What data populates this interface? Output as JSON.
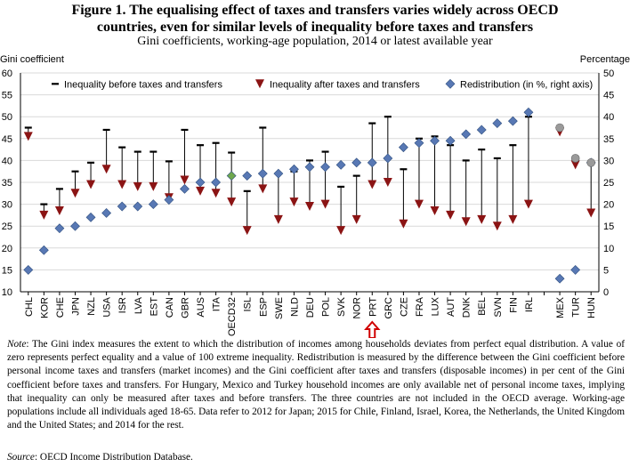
{
  "figure": {
    "title_line1": "Figure 1. The equalising effect of taxes and transfers varies widely across OECD",
    "title_line2": "countries, even for similar levels of inequality before taxes and transfers",
    "subtitle": "Gini coefficients, working-age population, 2014 or latest available year",
    "note_label": "Note",
    "note_text": ": The Gini index measures the extent to which the distribution of incomes among households deviates from perfect equal distribution. A value of zero represents perfect equality and a value of 100 extreme inequality. Redistribution is measured by the difference between the Gini coefficient before personal income taxes and transfers (market incomes) and the Gini coefficient after taxes and transfers (disposable incomes) in per cent of the Gini coefficient before taxes and transfers. For Hungary, Mexico and Turkey household incomes are only available net of personal income taxes, implying that inequality can only be measured after taxes and before transfers. The three countries are not included in the OECD average. Working-age populations include all individuals aged 18-65. Data refer to 2012 for Japan; 2015 for Chile, Finland, Israel, Korea, the Netherlands, the United Kingdom and the United States; and 2014 for the rest.",
    "source_label": "Source",
    "source_text": ": OECD Income Distribution Database."
  },
  "chart_data": {
    "type": "scatter",
    "ylabel_left": "Gini coefficient",
    "ylabel_right": "Percentage",
    "ylim_left": [
      10,
      60
    ],
    "ylim_right": [
      0,
      50
    ],
    "yticks_left": [
      10,
      15,
      20,
      25,
      30,
      35,
      40,
      45,
      50,
      55,
      60
    ],
    "yticks_right": [
      0,
      5,
      10,
      15,
      20,
      25,
      30,
      35,
      40,
      45,
      50
    ],
    "legend": [
      "Inequality before taxes and transfers",
      "Inequality after taxes and transfers",
      "Redistribution (in %, right axis)"
    ],
    "legend_position": "top",
    "highlight_label": "PRT",
    "highlight_color": "#d00000",
    "colors": {
      "before": "#000000",
      "after": "#8b1414",
      "redistribution": "#5878b4",
      "oecd": "#6fa84e",
      "nonoecd": "#9a9a9a"
    },
    "categories": [
      "CHL",
      "KOR",
      "CHE",
      "JPN",
      "NZL",
      "USA",
      "ISR",
      "LVA",
      "EST",
      "CAN",
      "GBR",
      "AUS",
      "ITA",
      "OECD32",
      "ISL",
      "ESP",
      "SWE",
      "NLD",
      "DEU",
      "POL",
      "SVK",
      "NOR",
      "PRT",
      "GRC",
      "CZE",
      "FRA",
      "LUX",
      "AUT",
      "DNK",
      "BEL",
      "SVN",
      "FIN",
      "IRL",
      "",
      "MEX",
      "TUR",
      "HUN"
    ],
    "series": [
      {
        "name": "Inequality before taxes and transfers",
        "values": [
          47.5,
          30.0,
          33.5,
          37.5,
          39.5,
          47.0,
          43.0,
          42.0,
          42.0,
          39.8,
          47.0,
          43.5,
          44.0,
          41.8,
          33.0,
          47.5,
          37.0,
          37.5,
          40.0,
          42.0,
          34.0,
          36.5,
          48.5,
          50.0,
          38.0,
          45.0,
          45.5,
          43.5,
          40.0,
          42.5,
          40.5,
          43.5,
          50.0,
          null,
          47.5,
          40.5,
          39.5
        ]
      },
      {
        "name": "Inequality after taxes and transfers",
        "values": [
          45.5,
          27.5,
          28.5,
          32.5,
          34.5,
          38.0,
          34.5,
          34.0,
          34.0,
          31.5,
          35.5,
          33.0,
          32.5,
          30.5,
          24.0,
          33.5,
          26.5,
          30.5,
          29.5,
          30.0,
          24.0,
          26.5,
          34.5,
          35.0,
          25.5,
          30.0,
          28.5,
          27.5,
          26.0,
          26.5,
          25.0,
          26.5,
          30.0,
          null,
          46.5,
          39.0,
          28.0
        ]
      },
      {
        "name": "Redistribution (in %, right axis)",
        "values": [
          5.0,
          9.5,
          14.5,
          15.0,
          17.0,
          18.0,
          19.5,
          19.5,
          20.0,
          21.0,
          23.5,
          25.0,
          25.0,
          26.5,
          26.5,
          27.0,
          27.0,
          28.0,
          28.5,
          28.5,
          29.0,
          29.5,
          29.5,
          30.5,
          33.0,
          34.0,
          34.5,
          34.5,
          36.0,
          37.0,
          38.5,
          39.0,
          41.0,
          null,
          3.0,
          5.0,
          29.5
        ]
      }
    ]
  }
}
